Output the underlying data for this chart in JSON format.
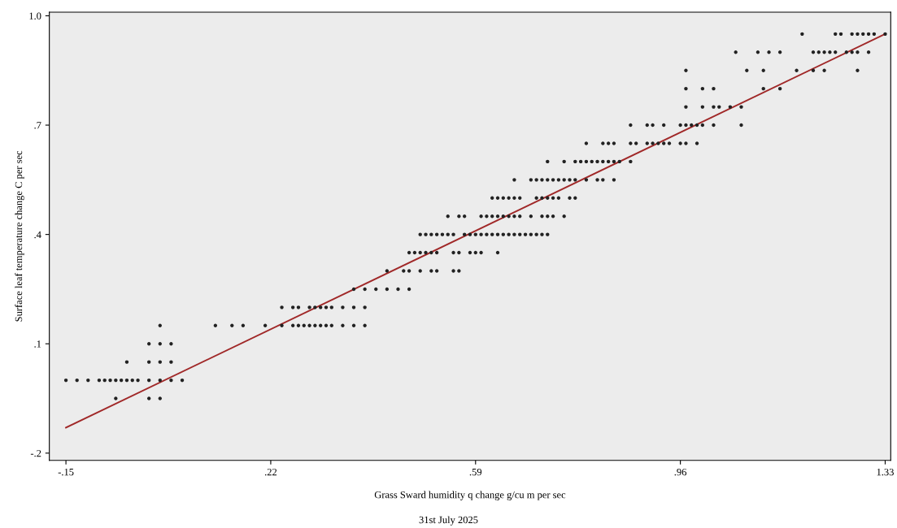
{
  "chart_data": {
    "type": "scatter",
    "xlabel": "Grass Sward humidity q change g/cu m per sec",
    "ylabel": "Surface leaf temperature change C per sec",
    "annotations": [
      "31st July 2025"
    ],
    "xlim": [
      -0.18,
      1.34
    ],
    "ylim": [
      -0.22,
      1.01
    ],
    "xticks": [
      {
        "value": -0.15,
        "label": "-.15"
      },
      {
        "value": 0.22,
        "label": ".22"
      },
      {
        "value": 0.59,
        "label": ".59"
      },
      {
        "value": 0.96,
        "label": ".96"
      },
      {
        "value": 1.33,
        "label": "1.33"
      }
    ],
    "yticks": [
      {
        "value": -0.2,
        "label": "-.2"
      },
      {
        "value": 0.1,
        "label": ".1"
      },
      {
        "value": 0.4,
        "label": ".4"
      },
      {
        "value": 0.7,
        "label": ".7"
      },
      {
        "value": 1.0,
        "label": "1.0"
      }
    ],
    "grid": false,
    "marker": "circle",
    "series": [
      {
        "color": "#222222",
        "x": [
          -0.06,
          0.0,
          0.02
        ],
        "values": [
          -0.05,
          -0.05,
          -0.05
        ]
      },
      {
        "color": "#222222",
        "x": [
          -0.15,
          -0.13,
          -0.11,
          -0.09,
          -0.08,
          -0.07,
          -0.06,
          -0.05,
          -0.04,
          -0.03,
          -0.02,
          0.0,
          0.02,
          0.04,
          0.06
        ],
        "values": [
          0.0,
          0.0,
          0.0,
          0.0,
          0.0,
          0.0,
          0.0,
          0.0,
          0.0,
          0.0,
          0.0,
          0.0,
          0.0,
          0.0,
          0.0
        ]
      },
      {
        "color": "#222222",
        "x": [
          -0.04,
          0.0,
          0.02,
          0.04
        ],
        "values": [
          0.05,
          0.05,
          0.05,
          0.05
        ]
      },
      {
        "color": "#222222",
        "x": [
          0.0,
          0.02,
          0.04
        ],
        "values": [
          0.1,
          0.1,
          0.1
        ]
      },
      {
        "color": "#222222",
        "x": [
          0.02,
          0.12,
          0.15,
          0.17,
          0.21,
          0.24,
          0.26,
          0.27,
          0.28,
          0.29,
          0.3,
          0.31,
          0.32,
          0.33,
          0.35,
          0.37,
          0.39
        ],
        "values": [
          0.15,
          0.15,
          0.15,
          0.15,
          0.15,
          0.15,
          0.15,
          0.15,
          0.15,
          0.15,
          0.15,
          0.15,
          0.15,
          0.15,
          0.15,
          0.15,
          0.15
        ]
      },
      {
        "color": "#222222",
        "x": [
          0.24,
          0.26,
          0.27,
          0.29,
          0.3,
          0.31,
          0.32,
          0.33,
          0.35,
          0.37,
          0.39
        ],
        "values": [
          0.2,
          0.2,
          0.2,
          0.2,
          0.2,
          0.2,
          0.2,
          0.2,
          0.2,
          0.2,
          0.2
        ]
      },
      {
        "color": "#222222",
        "x": [
          0.37,
          0.39,
          0.41,
          0.43,
          0.45,
          0.47
        ],
        "values": [
          0.25,
          0.25,
          0.25,
          0.25,
          0.25,
          0.25
        ]
      },
      {
        "color": "#222222",
        "x": [
          0.43,
          0.46,
          0.47,
          0.49,
          0.51,
          0.52,
          0.55,
          0.56
        ],
        "values": [
          0.3,
          0.3,
          0.3,
          0.3,
          0.3,
          0.3,
          0.3,
          0.3
        ]
      },
      {
        "color": "#222222",
        "x": [
          0.47,
          0.48,
          0.49,
          0.5,
          0.51,
          0.52,
          0.55,
          0.56,
          0.58,
          0.59,
          0.6,
          0.63
        ],
        "values": [
          0.35,
          0.35,
          0.35,
          0.35,
          0.35,
          0.35,
          0.35,
          0.35,
          0.35,
          0.35,
          0.35,
          0.35
        ]
      },
      {
        "color": "#222222",
        "x": [
          0.49,
          0.5,
          0.51,
          0.52,
          0.53,
          0.54,
          0.55,
          0.57,
          0.58,
          0.59,
          0.6,
          0.61,
          0.62,
          0.63,
          0.64,
          0.65,
          0.66,
          0.67,
          0.68,
          0.69,
          0.7,
          0.71,
          0.72
        ],
        "values": [
          0.4,
          0.4,
          0.4,
          0.4,
          0.4,
          0.4,
          0.4,
          0.4,
          0.4,
          0.4,
          0.4,
          0.4,
          0.4,
          0.4,
          0.4,
          0.4,
          0.4,
          0.4,
          0.4,
          0.4,
          0.4,
          0.4,
          0.4
        ]
      },
      {
        "color": "#222222",
        "x": [
          0.54,
          0.56,
          0.57,
          0.6,
          0.61,
          0.62,
          0.63,
          0.64,
          0.65,
          0.66,
          0.67,
          0.69,
          0.71,
          0.72,
          0.73,
          0.75
        ],
        "values": [
          0.45,
          0.45,
          0.45,
          0.45,
          0.45,
          0.45,
          0.45,
          0.45,
          0.45,
          0.45,
          0.45,
          0.45,
          0.45,
          0.45,
          0.45,
          0.45
        ]
      },
      {
        "color": "#222222",
        "x": [
          0.62,
          0.63,
          0.64,
          0.65,
          0.66,
          0.67,
          0.7,
          0.71,
          0.72,
          0.73,
          0.74,
          0.76,
          0.77
        ],
        "values": [
          0.5,
          0.5,
          0.5,
          0.5,
          0.5,
          0.5,
          0.5,
          0.5,
          0.5,
          0.5,
          0.5,
          0.5,
          0.5
        ]
      },
      {
        "color": "#222222",
        "x": [
          0.66,
          0.69,
          0.7,
          0.71,
          0.72,
          0.73,
          0.74,
          0.75,
          0.76,
          0.77,
          0.79,
          0.81,
          0.82,
          0.84
        ],
        "values": [
          0.55,
          0.55,
          0.55,
          0.55,
          0.55,
          0.55,
          0.55,
          0.55,
          0.55,
          0.55,
          0.55,
          0.55,
          0.55,
          0.55
        ]
      },
      {
        "color": "#222222",
        "x": [
          0.72,
          0.75,
          0.77,
          0.78,
          0.79,
          0.8,
          0.81,
          0.82,
          0.83,
          0.84,
          0.85,
          0.87
        ],
        "values": [
          0.6,
          0.6,
          0.6,
          0.6,
          0.6,
          0.6,
          0.6,
          0.6,
          0.6,
          0.6,
          0.6,
          0.6
        ]
      },
      {
        "color": "#222222",
        "x": [
          0.79,
          0.82,
          0.83,
          0.84,
          0.87,
          0.88,
          0.9,
          0.91,
          0.92,
          0.93,
          0.94,
          0.96,
          0.97,
          0.99
        ],
        "values": [
          0.65,
          0.65,
          0.65,
          0.65,
          0.65,
          0.65,
          0.65,
          0.65,
          0.65,
          0.65,
          0.65,
          0.65,
          0.65,
          0.65
        ]
      },
      {
        "color": "#222222",
        "x": [
          0.87,
          0.9,
          0.91,
          0.93,
          0.96,
          0.97,
          0.98,
          0.99,
          1.0,
          1.02,
          1.07
        ],
        "values": [
          0.7,
          0.7,
          0.7,
          0.7,
          0.7,
          0.7,
          0.7,
          0.7,
          0.7,
          0.7,
          0.7
        ]
      },
      {
        "color": "#222222",
        "x": [
          0.97,
          1.0,
          1.02,
          1.03,
          1.05,
          1.07
        ],
        "values": [
          0.75,
          0.75,
          0.75,
          0.75,
          0.75,
          0.75
        ]
      },
      {
        "color": "#222222",
        "x": [
          0.97,
          1.0,
          1.02,
          1.11,
          1.14
        ],
        "values": [
          0.8,
          0.8,
          0.8,
          0.8,
          0.8
        ]
      },
      {
        "color": "#222222",
        "x": [
          0.97,
          1.08,
          1.11,
          1.17,
          1.2,
          1.22,
          1.28
        ],
        "values": [
          0.85,
          0.85,
          0.85,
          0.85,
          0.85,
          0.85,
          0.85
        ]
      },
      {
        "color": "#222222",
        "x": [
          1.06,
          1.1,
          1.12,
          1.14,
          1.2,
          1.21,
          1.22,
          1.23,
          1.24,
          1.26,
          1.27,
          1.28,
          1.3
        ],
        "values": [
          0.9,
          0.9,
          0.9,
          0.9,
          0.9,
          0.9,
          0.9,
          0.9,
          0.9,
          0.9,
          0.9,
          0.9,
          0.9
        ]
      },
      {
        "color": "#222222",
        "x": [
          1.18,
          1.24,
          1.25,
          1.27,
          1.28,
          1.29,
          1.3,
          1.31,
          1.33
        ],
        "values": [
          0.95,
          0.95,
          0.95,
          0.95,
          0.95,
          0.95,
          0.95,
          0.95,
          0.95
        ]
      },
      {
        "type": "line",
        "color": "#a02828",
        "marker": "none",
        "line_style": "solid",
        "x": [
          -0.15,
          1.33
        ],
        "values": [
          -0.13,
          0.95
        ]
      }
    ]
  }
}
